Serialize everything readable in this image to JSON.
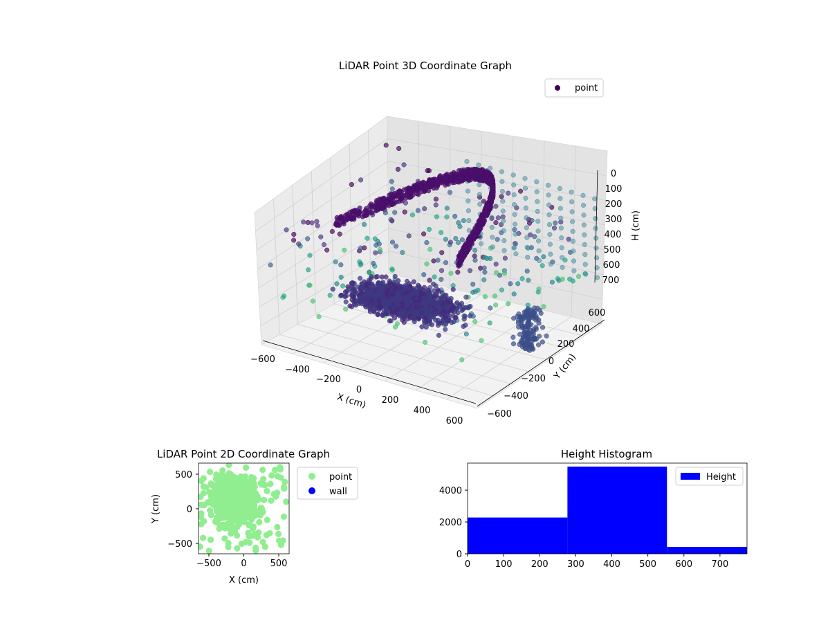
{
  "colors": {
    "viridis_dark": "#440154",
    "point_2d": "#90ee90",
    "wall_2d": "#0000ff",
    "hist_bar": "#0000ff"
  },
  "chart_data": [
    {
      "id": "scatter3d",
      "type": "scatter",
      "title": "LiDAR Point 3D Coordinate Graph",
      "xlabel": "X (cm)",
      "ylabel": "Y (cm)",
      "zlabel": "H (cm)",
      "xticks": [
        "−600",
        "−400",
        "−200",
        "0",
        "200",
        "400",
        "600"
      ],
      "yticks": [
        "−600",
        "−400",
        "−200",
        "0",
        "200",
        "400",
        "600"
      ],
      "zticks": [
        "0",
        "100",
        "200",
        "300",
        "400",
        "500",
        "600",
        "700"
      ],
      "xlim": [
        -650,
        650
      ],
      "ylim": [
        -650,
        650
      ],
      "zlim": [
        0,
        780
      ],
      "z_axis_inverted": true,
      "colormap": "viridis",
      "legend": [
        {
          "label": "point"
        }
      ],
      "legend_placement": "upper-right",
      "grid": true
    },
    {
      "id": "scatter2d",
      "type": "scatter",
      "title": "LiDAR Point 2D Coordinate Graph",
      "xlabel": "X (cm)",
      "ylabel": "Y (cm)",
      "xticks": [
        "−500",
        "0",
        "500"
      ],
      "yticks": [
        "500",
        "0",
        "−500"
      ],
      "xlim": [
        -650,
        650
      ],
      "ylim": [
        -650,
        650
      ],
      "series": [
        {
          "name": "point",
          "color": "#90ee90"
        },
        {
          "name": "wall",
          "color": "#0000ff"
        }
      ],
      "legend_placement": "outside-right"
    },
    {
      "id": "histogram",
      "type": "bar",
      "title": "Height Histogram",
      "xticks": [
        "0",
        "100",
        "200",
        "300",
        "400",
        "500",
        "600",
        "700"
      ],
      "yticks": [
        "0",
        "2000",
        "4000"
      ],
      "xlim": [
        0,
        775
      ],
      "ylim": [
        0,
        5700
      ],
      "bins": [
        {
          "start": 0,
          "end": 277,
          "count": 2280
        },
        {
          "start": 277,
          "end": 553,
          "count": 5480
        },
        {
          "start": 553,
          "end": 775,
          "count": 430
        }
      ],
      "series": [
        {
          "name": "Height",
          "color": "#0000ff"
        }
      ],
      "legend_placement": "upper-right"
    }
  ]
}
